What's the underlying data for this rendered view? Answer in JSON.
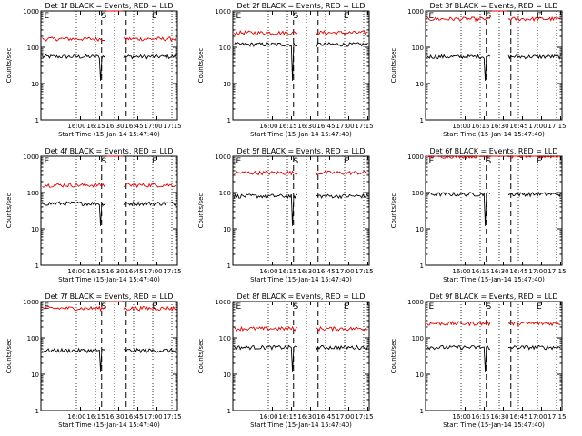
{
  "figure": {
    "panel_title_suffix": " BLACK = Events, RED = LLD",
    "start_time_label": "Start Time (15-Jan-14 15:47:40)",
    "ylabel": "Counts/sec",
    "y_ticks": [
      "1",
      "10",
      "100",
      "1000"
    ],
    "x_ticks": [
      "16:00",
      "16:15",
      "16:30",
      "16:45",
      "17:00",
      "17:15"
    ],
    "marker_labels": [
      "E",
      "S",
      "E"
    ]
  },
  "colors": {
    "events": "#000000",
    "lld": "#e00000",
    "axes": "#000000"
  },
  "chart_data": [
    {
      "type": "line",
      "title": "Det 1f BLACK = Events, RED = LLD",
      "ylabel": "Counts/sec",
      "xlabel": "Start Time (15-Jan-14 15:47:40)",
      "y_scale": "log",
      "ylim": [
        1,
        1000
      ],
      "series": [
        {
          "name": "BLACK = Events",
          "level": 55,
          "dip": true
        },
        {
          "name": "RED = LLD",
          "level": 170,
          "dip": false
        }
      ],
      "saturated_gap": true
    },
    {
      "type": "line",
      "title": "Det 2f BLACK = Events, RED = LLD",
      "ylabel": "Counts/sec",
      "xlabel": "Start Time (15-Jan-14 15:47:40)",
      "y_scale": "log",
      "ylim": [
        1,
        1000
      ],
      "series": [
        {
          "name": "BLACK = Events",
          "level": 120,
          "dip": true
        },
        {
          "name": "RED = LLD",
          "level": 250,
          "dip": false
        }
      ],
      "saturated_gap": false
    },
    {
      "type": "line",
      "title": "Det 3f BLACK = Events, RED = LLD",
      "ylabel": "Counts/sec",
      "xlabel": "Start Time (15-Jan-14 15:47:40)",
      "y_scale": "log",
      "ylim": [
        1,
        1000
      ],
      "series": [
        {
          "name": "BLACK = Events",
          "level": 55,
          "dip": true
        },
        {
          "name": "RED = LLD",
          "level": 600,
          "dip": false
        }
      ],
      "saturated_gap": true
    },
    {
      "type": "line",
      "title": "Det 4f BLACK = Events, RED = LLD",
      "ylabel": "Counts/sec",
      "xlabel": "Start Time (15-Jan-14 15:47:40)",
      "y_scale": "log",
      "ylim": [
        1,
        1000
      ],
      "series": [
        {
          "name": "BLACK = Events",
          "level": 50,
          "dip": true
        },
        {
          "name": "RED = LLD",
          "level": 160,
          "dip": false
        }
      ],
      "saturated_gap": true
    },
    {
      "type": "line",
      "title": "Det 5f BLACK = Events, RED = LLD",
      "ylabel": "Counts/sec",
      "xlabel": "Start Time (15-Jan-14 15:47:40)",
      "y_scale": "log",
      "ylim": [
        1,
        1000
      ],
      "series": [
        {
          "name": "BLACK = Events",
          "level": 80,
          "dip": true
        },
        {
          "name": "RED = LLD",
          "level": 350,
          "dip": false
        }
      ],
      "saturated_gap": false
    },
    {
      "type": "line",
      "title": "Det 6f BLACK = Events, RED = LLD",
      "ylabel": "Counts/sec",
      "xlabel": "Start Time (15-Jan-14 15:47:40)",
      "y_scale": "log",
      "ylim": [
        1,
        1000
      ],
      "series": [
        {
          "name": "BLACK = Events",
          "level": 90,
          "dip": true
        },
        {
          "name": "RED = LLD",
          "level": 1000,
          "dip": false
        }
      ],
      "saturated_gap": true
    },
    {
      "type": "line",
      "title": "Det 7f BLACK = Events, RED = LLD",
      "ylabel": "Counts/sec",
      "xlabel": "Start Time (15-Jan-14 15:47:40)",
      "y_scale": "log",
      "ylim": [
        1,
        1000
      ],
      "series": [
        {
          "name": "BLACK = Events",
          "level": 45,
          "dip": true
        },
        {
          "name": "RED = LLD",
          "level": 650,
          "dip": false
        }
      ],
      "saturated_gap": true
    },
    {
      "type": "line",
      "title": "Det 8f BLACK = Events, RED = LLD",
      "ylabel": "Counts/sec",
      "xlabel": "Start Time (15-Jan-14 15:47:40)",
      "y_scale": "log",
      "ylim": [
        1,
        1000
      ],
      "series": [
        {
          "name": "BLACK = Events",
          "level": 55,
          "dip": true
        },
        {
          "name": "RED = LLD",
          "level": 180,
          "dip": false
        }
      ],
      "saturated_gap": false
    },
    {
      "type": "line",
      "title": "Det 9f BLACK = Events, RED = LLD",
      "ylabel": "Counts/sec",
      "xlabel": "Start Time (15-Jan-14 15:47:40)",
      "y_scale": "log",
      "ylim": [
        1,
        1000
      ],
      "series": [
        {
          "name": "BLACK = Events",
          "level": 55,
          "dip": true
        },
        {
          "name": "RED = LLD",
          "level": 250,
          "dip": false
        }
      ],
      "saturated_gap": false
    }
  ]
}
